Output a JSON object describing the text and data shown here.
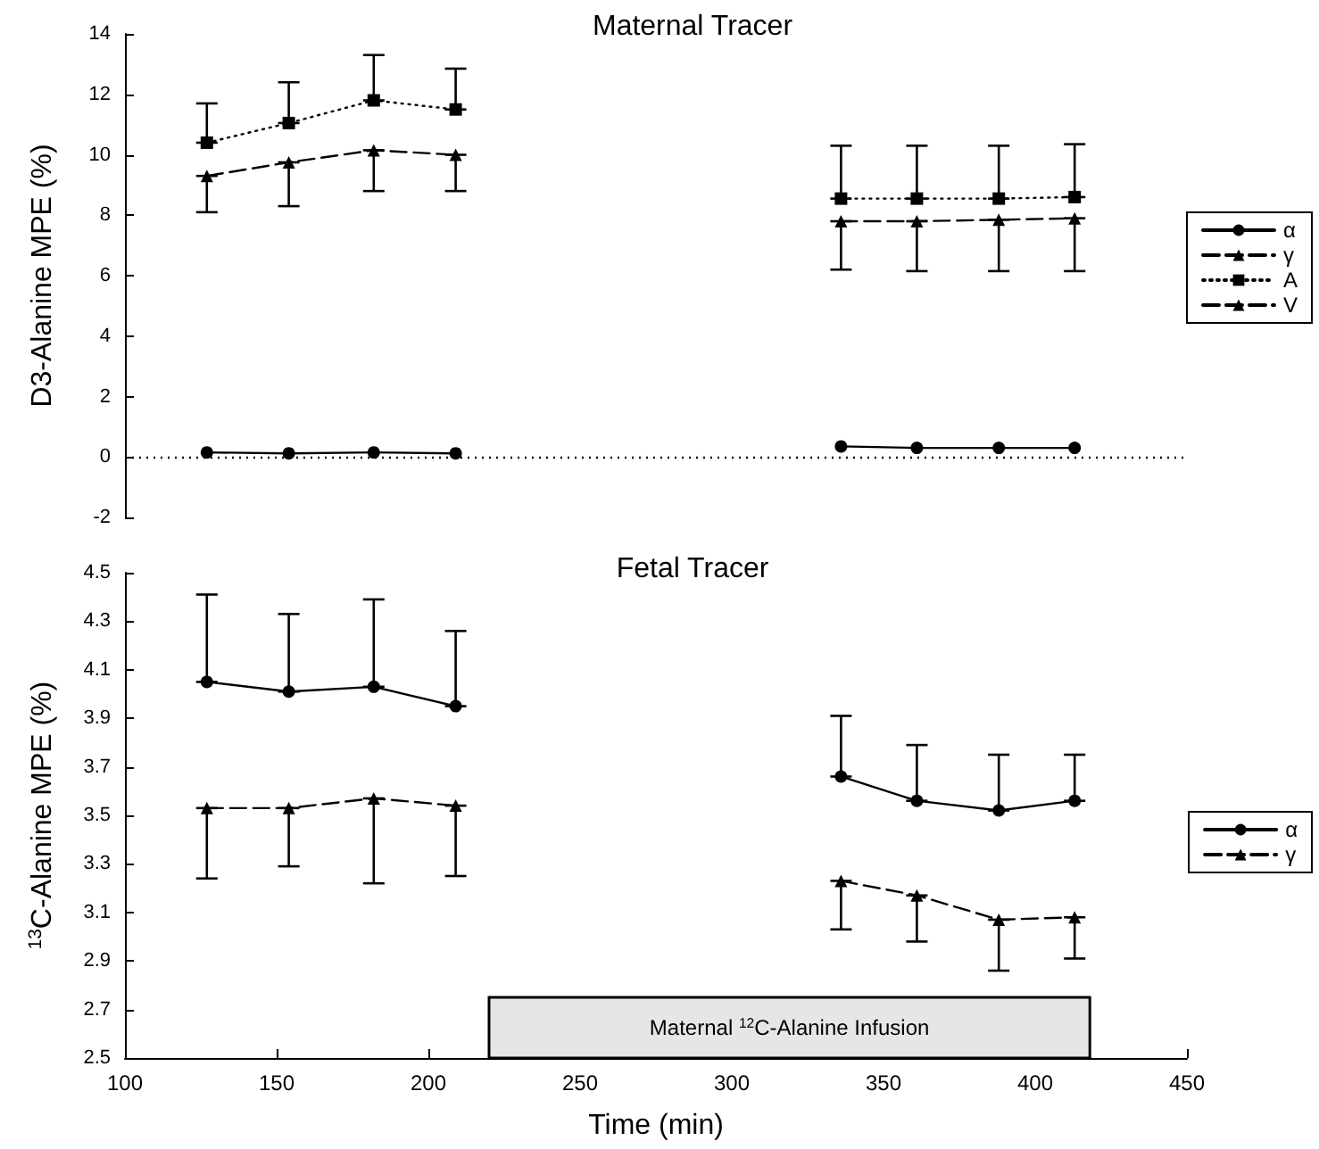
{
  "chart_data": [
    {
      "type": "line",
      "title": "Maternal Tracer",
      "ylabel": "D3-Alanine MPE (%)",
      "xlim": [
        100,
        450
      ],
      "xticks": [
        100,
        150,
        200,
        250,
        300,
        350,
        400,
        450
      ],
      "ylim": [
        -2,
        14
      ],
      "yticks": [
        -2,
        0,
        2,
        4,
        6,
        8,
        10,
        12,
        14
      ],
      "tick_labels": "y",
      "legend": "right",
      "grid": false,
      "x": [
        127,
        154,
        182,
        209,
        270,
        336,
        361,
        388,
        413
      ],
      "ref_lines": [
        {
          "axis": "y",
          "value": 0,
          "line_style": "dotted",
          "color": "#000000"
        }
      ],
      "series": [
        {
          "name": "α",
          "color": "#000000",
          "marker": "circle",
          "line_style": "solid",
          "values": [
            0.15,
            0.12,
            0.15,
            0.12,
            null,
            0.35,
            0.3,
            0.3,
            0.3
          ]
        },
        {
          "name": "γ",
          "color": "#000000",
          "marker": "triangle",
          "line_style": "dashed",
          "values": [
            null,
            null,
            null,
            null,
            null,
            null,
            null,
            null,
            null
          ]
        },
        {
          "name": "A",
          "color": "#000000",
          "marker": "square",
          "line_style": "dotted",
          "values": [
            10.4,
            11.05,
            11.8,
            11.5,
            null,
            8.55,
            8.55,
            8.55,
            8.6
          ],
          "errors": [
            [
              10.4,
              11.7
            ],
            [
              11.05,
              12.4
            ],
            [
              11.8,
              13.3
            ],
            [
              11.5,
              12.85
            ],
            null,
            [
              8.55,
              10.3
            ],
            [
              8.55,
              10.3
            ],
            [
              8.55,
              10.3
            ],
            [
              8.6,
              10.35
            ]
          ]
        },
        {
          "name": "V",
          "color": "#000000",
          "marker": "triangle",
          "line_style": "dashed",
          "values": [
            9.3,
            9.75,
            10.15,
            10.0,
            null,
            7.8,
            7.8,
            7.85,
            7.9
          ],
          "errors": [
            [
              8.1,
              9.3
            ],
            [
              8.3,
              9.75
            ],
            [
              8.8,
              10.15
            ],
            [
              8.8,
              10.0
            ],
            null,
            [
              6.2,
              7.8
            ],
            [
              6.15,
              7.8
            ],
            [
              6.15,
              7.85
            ],
            [
              6.15,
              7.9
            ]
          ]
        }
      ]
    },
    {
      "type": "line",
      "title": "Fetal Tracer",
      "xlabel": "Time (min)",
      "ylabel": "$^{13}$C-Alanine MPE (%)",
      "xlim": [
        100,
        450
      ],
      "xticks": [
        100,
        150,
        200,
        250,
        300,
        350,
        400,
        450
      ],
      "ylim": [
        2.5,
        4.5
      ],
      "yticks": [
        2.5,
        2.7,
        2.9,
        3.1,
        3.3,
        3.5,
        3.7,
        3.9,
        4.1,
        4.3,
        4.5
      ],
      "legend": "right",
      "grid": false,
      "x": [
        127,
        154,
        182,
        209,
        270,
        336,
        361,
        388,
        413
      ],
      "bands": [
        {
          "axis": "x",
          "from": 220,
          "to": 418,
          "label": "Maternal $^{12}$C-Alanine Infusion",
          "color": "#e6e6e6"
        }
      ],
      "series": [
        {
          "name": "α",
          "color": "#000000",
          "marker": "circle",
          "line_style": "solid",
          "values": [
            4.05,
            4.01,
            4.03,
            3.95,
            null,
            3.66,
            3.56,
            3.52,
            3.56
          ],
          "errors": [
            [
              4.05,
              4.41
            ],
            [
              4.01,
              4.33
            ],
            [
              4.03,
              4.39
            ],
            [
              3.95,
              4.26
            ],
            null,
            [
              3.66,
              3.91
            ],
            [
              3.56,
              3.79
            ],
            [
              3.52,
              3.75
            ],
            [
              3.56,
              3.75
            ]
          ]
        },
        {
          "name": "γ",
          "color": "#000000",
          "marker": "triangle",
          "line_style": "dashed",
          "values": [
            3.53,
            3.53,
            3.57,
            3.54,
            null,
            3.23,
            3.17,
            3.07,
            3.08
          ],
          "errors": [
            [
              3.24,
              3.53
            ],
            [
              3.29,
              3.53
            ],
            [
              3.22,
              3.57
            ],
            [
              3.25,
              3.54
            ],
            null,
            [
              3.03,
              3.23
            ],
            [
              2.98,
              3.17
            ],
            [
              2.86,
              3.07
            ],
            [
              2.91,
              3.08
            ]
          ]
        }
      ]
    }
  ]
}
